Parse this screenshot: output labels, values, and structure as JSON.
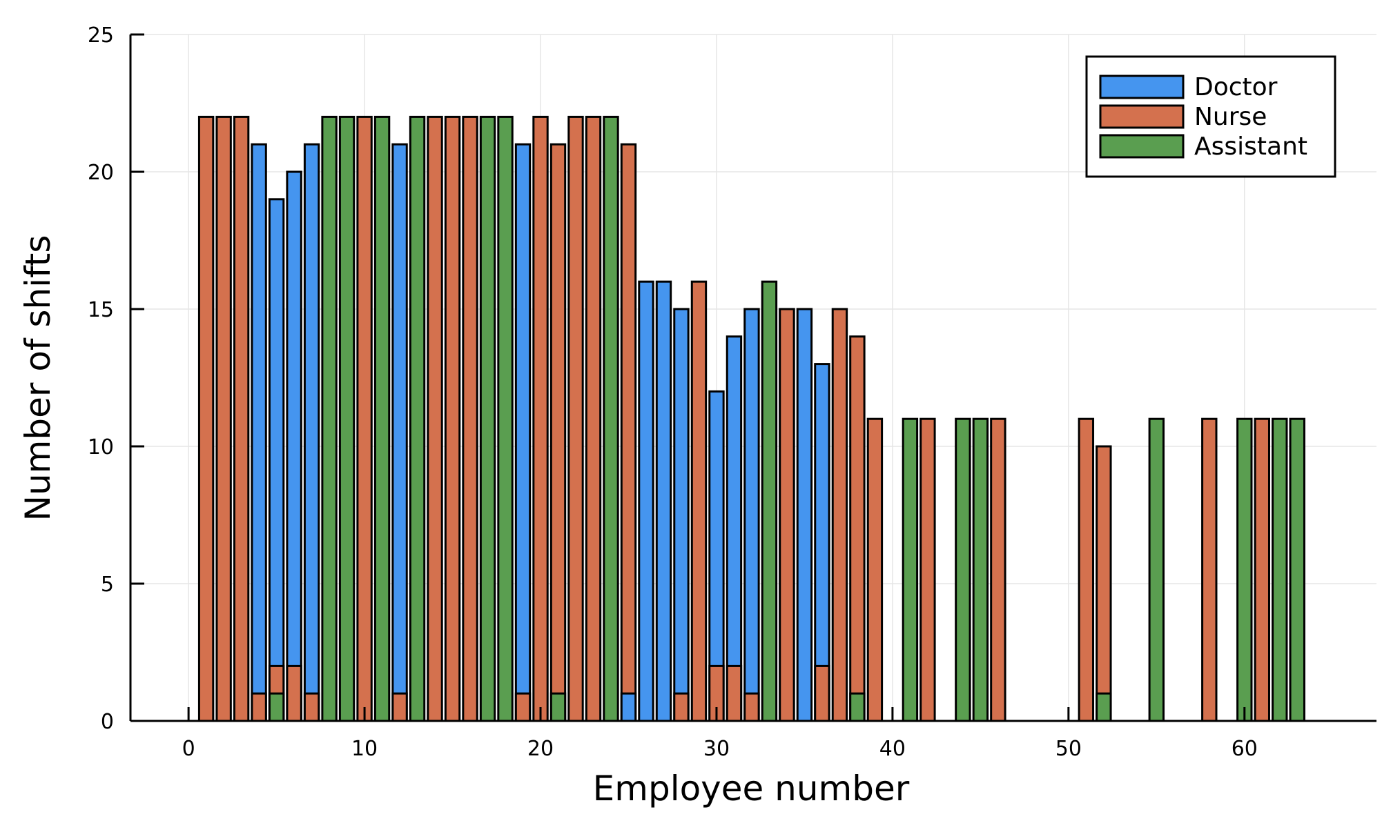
{
  "chart_data": {
    "type": "bar",
    "title": "",
    "xlabel": "Employee number",
    "ylabel": "Number of shifts",
    "xlim": [
      -3.3,
      67.5
    ],
    "ylim": [
      0,
      25
    ],
    "xticks": [
      0,
      10,
      20,
      30,
      40,
      50,
      60
    ],
    "yticks": [
      0,
      5,
      10,
      15,
      20,
      25
    ],
    "grid": true,
    "legend_position": "top-right",
    "series": [
      {
        "name": "Doctor",
        "color": "#4595ef",
        "points": [
          {
            "x": 4,
            "y": 21
          },
          {
            "x": 5,
            "y": 19
          },
          {
            "x": 6,
            "y": 20
          },
          {
            "x": 7,
            "y": 21
          },
          {
            "x": 12,
            "y": 21
          },
          {
            "x": 19,
            "y": 21
          },
          {
            "x": 25,
            "y": 1
          },
          {
            "x": 26,
            "y": 16
          },
          {
            "x": 27,
            "y": 16
          },
          {
            "x": 28,
            "y": 15
          },
          {
            "x": 30,
            "y": 12
          },
          {
            "x": 31,
            "y": 14
          },
          {
            "x": 32,
            "y": 15
          },
          {
            "x": 34,
            "y": 15
          },
          {
            "x": 35,
            "y": 15
          },
          {
            "x": 36,
            "y": 13
          }
        ]
      },
      {
        "name": "Nurse",
        "color": "#d4714e",
        "points": [
          {
            "x": 1,
            "y": 22
          },
          {
            "x": 2,
            "y": 22
          },
          {
            "x": 3,
            "y": 22
          },
          {
            "x": 4,
            "y": 1
          },
          {
            "x": 5,
            "y": 2
          },
          {
            "x": 6,
            "y": 2
          },
          {
            "x": 7,
            "y": 1
          },
          {
            "x": 10,
            "y": 22
          },
          {
            "x": 12,
            "y": 1
          },
          {
            "x": 14,
            "y": 22
          },
          {
            "x": 15,
            "y": 22
          },
          {
            "x": 16,
            "y": 22
          },
          {
            "x": 19,
            "y": 1
          },
          {
            "x": 20,
            "y": 22
          },
          {
            "x": 21,
            "y": 21
          },
          {
            "x": 22,
            "y": 22
          },
          {
            "x": 23,
            "y": 22
          },
          {
            "x": 25,
            "y": 21
          },
          {
            "x": 28,
            "y": 1
          },
          {
            "x": 29,
            "y": 16
          },
          {
            "x": 30,
            "y": 2
          },
          {
            "x": 31,
            "y": 2
          },
          {
            "x": 32,
            "y": 1
          },
          {
            "x": 34,
            "y": 15
          },
          {
            "x": 36,
            "y": 2
          },
          {
            "x": 37,
            "y": 15
          },
          {
            "x": 38,
            "y": 14
          },
          {
            "x": 39,
            "y": 11
          },
          {
            "x": 42,
            "y": 11
          },
          {
            "x": 46,
            "y": 11
          },
          {
            "x": 51,
            "y": 11
          },
          {
            "x": 52,
            "y": 10
          },
          {
            "x": 58,
            "y": 11
          },
          {
            "x": 61,
            "y": 11
          }
        ]
      },
      {
        "name": "Assistant",
        "color": "#5a9e50",
        "points": [
          {
            "x": 5,
            "y": 1
          },
          {
            "x": 8,
            "y": 22
          },
          {
            "x": 9,
            "y": 22
          },
          {
            "x": 11,
            "y": 22
          },
          {
            "x": 13,
            "y": 22
          },
          {
            "x": 17,
            "y": 22
          },
          {
            "x": 18,
            "y": 22
          },
          {
            "x": 21,
            "y": 1
          },
          {
            "x": 24,
            "y": 22
          },
          {
            "x": 33,
            "y": 16
          },
          {
            "x": 38,
            "y": 1
          },
          {
            "x": 41,
            "y": 11
          },
          {
            "x": 44,
            "y": 11
          },
          {
            "x": 45,
            "y": 11
          },
          {
            "x": 52,
            "y": 1
          },
          {
            "x": 55,
            "y": 11
          },
          {
            "x": 60,
            "y": 11
          },
          {
            "x": 62,
            "y": 11
          },
          {
            "x": 63,
            "y": 11
          }
        ]
      }
    ]
  }
}
